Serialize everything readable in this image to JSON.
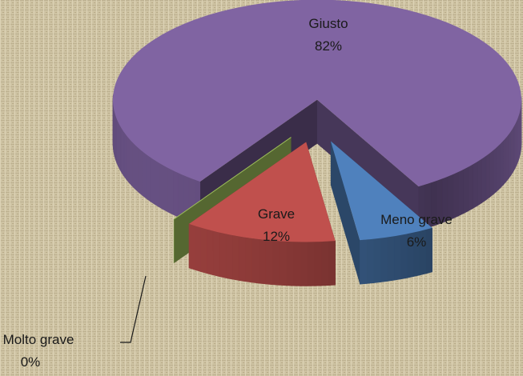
{
  "chart_data": {
    "type": "pie3d",
    "categories": [
      "Giusto",
      "Meno grave",
      "Grave",
      "Molto grave"
    ],
    "values": [
      82,
      6,
      12,
      0
    ],
    "value_labels": [
      "82%",
      "6%",
      "12%",
      "0%"
    ],
    "colors": [
      "#8064a2",
      "#4f81bd",
      "#c0504d",
      "#9bbb59"
    ]
  }
}
